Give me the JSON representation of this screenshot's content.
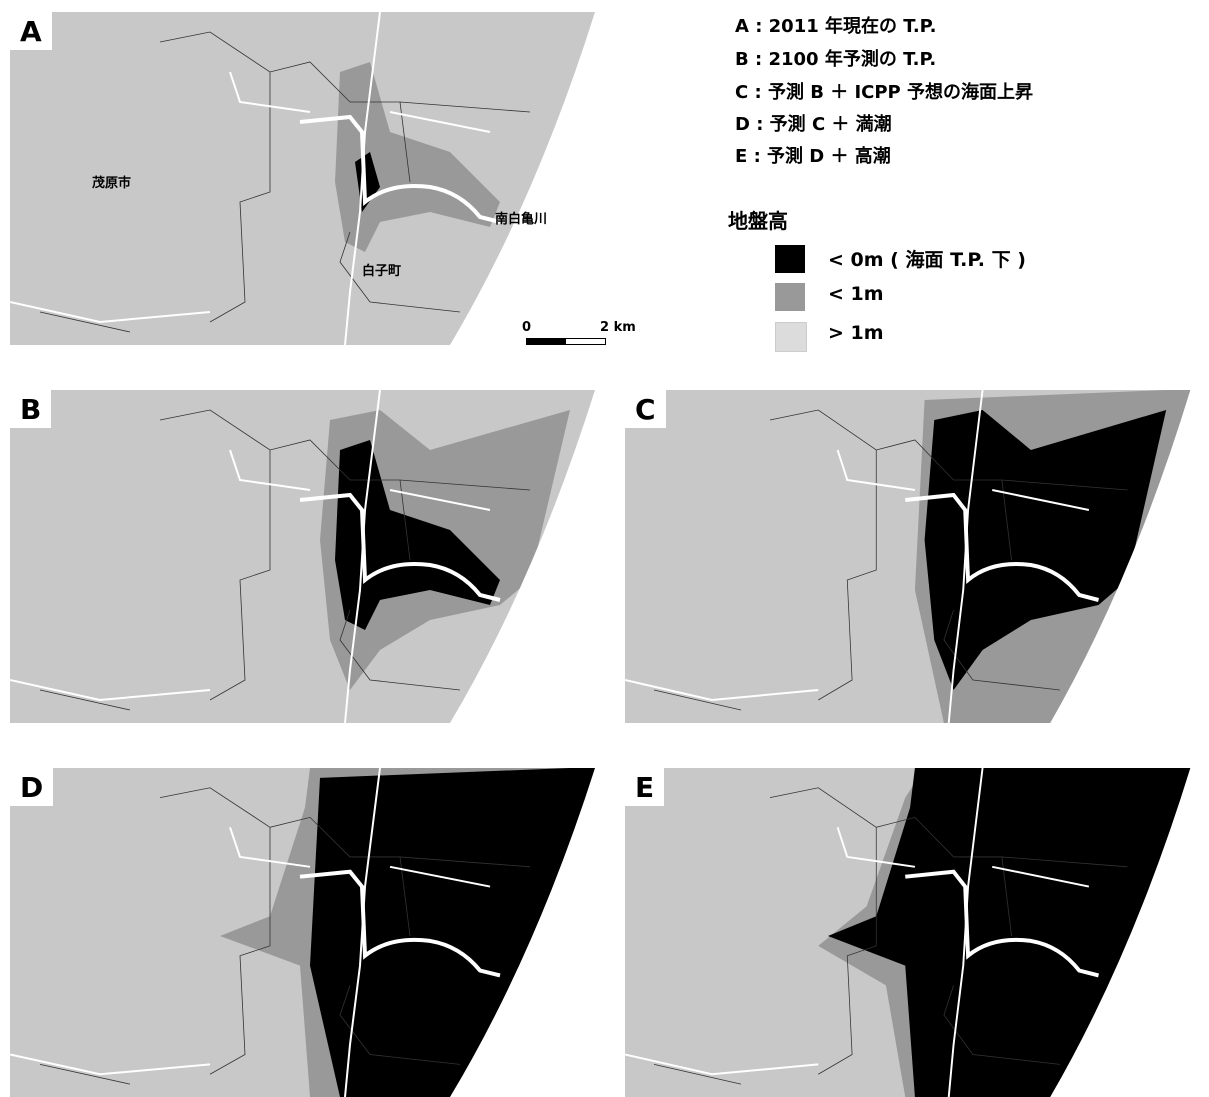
{
  "panels": [
    {
      "label": "A"
    },
    {
      "label": "B"
    },
    {
      "label": "C"
    },
    {
      "label": "D"
    },
    {
      "label": "E"
    }
  ],
  "place_labels": [
    "茂原市",
    "白子町",
    "南白亀川"
  ],
  "scale_bar": {
    "start": "0",
    "end": "2 km"
  },
  "scenarios": [
    "A : 2011 年現在の T.P.",
    "B : 2100 年予測の T.P.",
    "C : 予測 B ＋ ICPP 予想の海面上昇",
    "D : 予測 C ＋ 満潮",
    "E : 予測 D ＋ 高潮"
  ],
  "legend": {
    "title": "地盤高",
    "items": [
      {
        "label": "< 0m ( 海面 T.P. 下 )",
        "color": "#000000"
      },
      {
        "label": "< 1m",
        "color": "#999999"
      },
      {
        "label": "> 1m",
        "color": "#dcdcdc"
      }
    ]
  }
}
